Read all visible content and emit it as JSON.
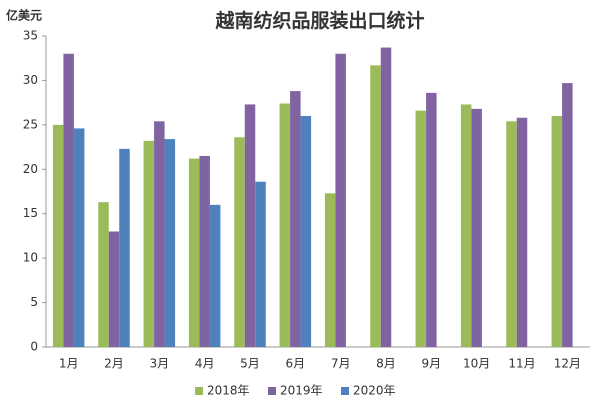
{
  "chart_data": {
    "type": "bar",
    "title": "越南纺织品服装出口统计",
    "y_label": "亿美元",
    "categories": [
      "1月",
      "2月",
      "3月",
      "4月",
      "5月",
      "6月",
      "7月",
      "8月",
      "9月",
      "10月",
      "11月",
      "12月"
    ],
    "series": [
      {
        "name": "2018年",
        "color": "#9bbb59",
        "values": [
          25.0,
          16.3,
          23.2,
          21.2,
          23.6,
          27.4,
          17.3,
          31.7,
          26.6,
          27.3,
          25.4,
          26.0
        ]
      },
      {
        "name": "2019年",
        "color": "#8064a2",
        "values": [
          33.0,
          13.0,
          25.4,
          21.5,
          27.3,
          28.8,
          33.0,
          33.7,
          28.6,
          26.8,
          25.8,
          29.7
        ]
      },
      {
        "name": "2020年",
        "color": "#4f81bd",
        "values": [
          24.6,
          22.3,
          23.4,
          16.0,
          18.6,
          26.0,
          null,
          null,
          null,
          null,
          null,
          null
        ]
      }
    ],
    "ylim": [
      0,
      35
    ],
    "yticks": [
      0,
      5,
      10,
      15,
      20,
      25,
      30,
      35
    ],
    "grid": false,
    "legend": "bottom"
  }
}
